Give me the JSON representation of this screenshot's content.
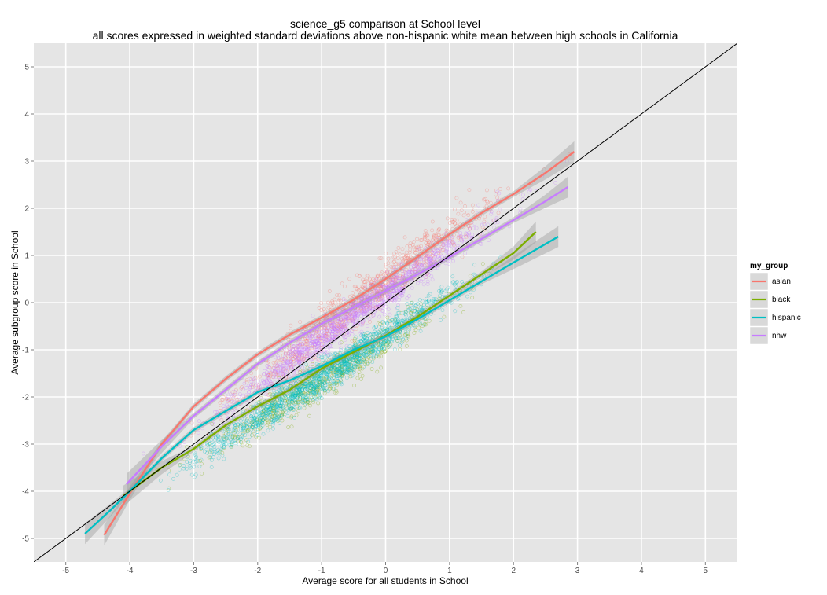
{
  "chart_data": {
    "type": "scatter",
    "title": "science_g5 comparison at School level",
    "subtitle": "all scores expressed in weighted standard deviations above non-hispanic white mean between high schools in California",
    "xlabel": "Average score for all students in School",
    "ylabel": "Average subgroup score in School",
    "xlim": [
      -5.5,
      5.5
    ],
    "ylim": [
      -5.5,
      5.5
    ],
    "x_ticks": [
      -5,
      -4,
      -3,
      -2,
      -1,
      0,
      1,
      2,
      3,
      4,
      5
    ],
    "y_ticks": [
      -5,
      -4,
      -3,
      -2,
      -1,
      0,
      1,
      2,
      3,
      4,
      5
    ],
    "grid": true,
    "reference_line": {
      "slope": 1,
      "intercept": 0,
      "color": "#000000"
    },
    "legend": {
      "title": "my_group",
      "position": "right"
    },
    "series": [
      {
        "name": "asian",
        "color": "#F8766D",
        "smooth": [
          [
            -4.4,
            -4.93
          ],
          [
            -4.0,
            -4.05
          ],
          [
            -3.5,
            -3.0
          ],
          [
            -3.0,
            -2.2
          ],
          [
            -2.5,
            -1.62
          ],
          [
            -2.0,
            -1.1
          ],
          [
            -1.5,
            -0.68
          ],
          [
            -1.0,
            -0.32
          ],
          [
            -0.5,
            0.06
          ],
          [
            0.0,
            0.5
          ],
          [
            0.5,
            0.97
          ],
          [
            1.0,
            1.45
          ],
          [
            1.5,
            1.9
          ],
          [
            2.0,
            2.3
          ],
          [
            2.5,
            2.75
          ],
          [
            2.95,
            3.2
          ]
        ],
        "points": {
          "count": 900,
          "x_range": [
            -3.5,
            2.9
          ],
          "slope": 1.05,
          "intercept": 0.45,
          "spread": 0.55
        }
      },
      {
        "name": "black",
        "color": "#7CAE00",
        "smooth": [
          [
            -4.1,
            -4.1
          ],
          [
            -3.5,
            -3.5
          ],
          [
            -3.0,
            -3.1
          ],
          [
            -2.5,
            -2.6
          ],
          [
            -2.0,
            -2.2
          ],
          [
            -1.5,
            -1.85
          ],
          [
            -1.0,
            -1.4
          ],
          [
            -0.5,
            -1.05
          ],
          [
            0.0,
            -0.7
          ],
          [
            0.5,
            -0.3
          ],
          [
            1.0,
            0.15
          ],
          [
            1.5,
            0.6
          ],
          [
            2.0,
            1.05
          ],
          [
            2.35,
            1.5
          ]
        ],
        "points": {
          "count": 600,
          "x_range": [
            -3.9,
            2.2
          ],
          "slope": 0.85,
          "intercept": -0.8,
          "spread": 0.5
        }
      },
      {
        "name": "hispanic",
        "color": "#00BFC4",
        "smooth": [
          [
            -4.7,
            -4.9
          ],
          [
            -4.3,
            -4.4
          ],
          [
            -4.0,
            -4.0
          ],
          [
            -3.5,
            -3.3
          ],
          [
            -3.0,
            -2.7
          ],
          [
            -2.5,
            -2.3
          ],
          [
            -2.0,
            -1.9
          ],
          [
            -1.5,
            -1.65
          ],
          [
            -1.0,
            -1.35
          ],
          [
            -0.5,
            -1.0
          ],
          [
            0.0,
            -0.72
          ],
          [
            0.5,
            -0.35
          ],
          [
            1.0,
            0.05
          ],
          [
            1.5,
            0.45
          ],
          [
            2.0,
            0.85
          ],
          [
            2.7,
            1.4
          ]
        ],
        "points": {
          "count": 1400,
          "x_range": [
            -4.0,
            2.3
          ],
          "slope": 0.88,
          "intercept": -0.7,
          "spread": 0.42
        }
      },
      {
        "name": "nhw",
        "color": "#C77CFF",
        "smooth": [
          [
            -4.05,
            -3.85
          ],
          [
            -3.5,
            -3.05
          ],
          [
            -3.0,
            -2.4
          ],
          [
            -2.5,
            -1.85
          ],
          [
            -2.0,
            -1.3
          ],
          [
            -1.5,
            -0.85
          ],
          [
            -1.0,
            -0.45
          ],
          [
            -0.5,
            -0.1
          ],
          [
            0.0,
            0.25
          ],
          [
            0.5,
            0.6
          ],
          [
            1.0,
            0.97
          ],
          [
            1.5,
            1.35
          ],
          [
            2.0,
            1.75
          ],
          [
            2.5,
            2.15
          ],
          [
            2.85,
            2.45
          ]
        ],
        "points": {
          "count": 1300,
          "x_range": [
            -3.8,
            2.8
          ],
          "slope": 0.95,
          "intercept": 0.2,
          "spread": 0.45
        }
      }
    ]
  }
}
